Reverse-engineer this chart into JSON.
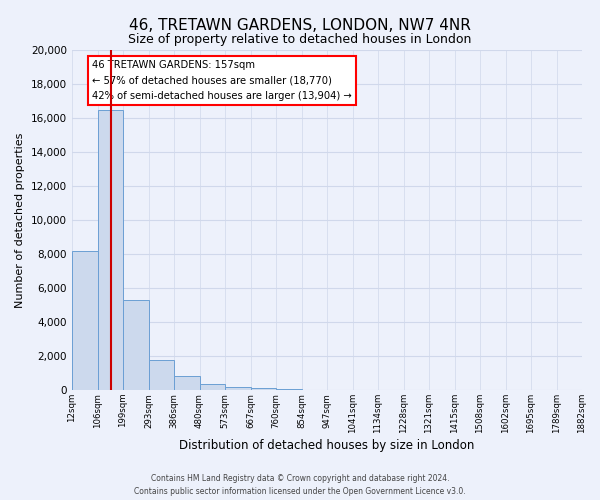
{
  "title": "46, TRETAWN GARDENS, LONDON, NW7 4NR",
  "subtitle": "Size of property relative to detached houses in London",
  "xlabel": "Distribution of detached houses by size in London",
  "ylabel": "Number of detached properties",
  "bar_labels": [
    "12sqm",
    "106sqm",
    "199sqm",
    "293sqm",
    "386sqm",
    "480sqm",
    "573sqm",
    "667sqm",
    "760sqm",
    "854sqm",
    "947sqm",
    "1041sqm",
    "1134sqm",
    "1228sqm",
    "1321sqm",
    "1415sqm",
    "1508sqm",
    "1602sqm",
    "1695sqm",
    "1789sqm",
    "1882sqm"
  ],
  "all_bar_values": [
    8150,
    16500,
    5300,
    1750,
    800,
    350,
    150,
    100,
    50,
    0,
    0,
    0,
    0,
    0,
    0,
    0,
    0,
    0,
    0,
    0
  ],
  "bar_color": "#ccd9ed",
  "bar_edge_color": "#6b9fd4",
  "annotation_line1": "46 TRETAWN GARDENS: 157sqm",
  "annotation_line2": "← 57% of detached houses are smaller (18,770)",
  "annotation_line3": "42% of semi-detached houses are larger (13,904) →",
  "ylim": [
    0,
    20000
  ],
  "yticks": [
    0,
    2000,
    4000,
    6000,
    8000,
    10000,
    12000,
    14000,
    16000,
    18000,
    20000
  ],
  "footer1": "Contains HM Land Registry data © Crown copyright and database right 2024.",
  "footer2": "Contains public sector information licensed under the Open Government Licence v3.0.",
  "bg_color": "#edf1fb",
  "plot_bg_color": "#edf1fb",
  "grid_color": "#d0d8eb",
  "red_line_color": "#cc0000",
  "title_fontsize": 11,
  "subtitle_fontsize": 9
}
